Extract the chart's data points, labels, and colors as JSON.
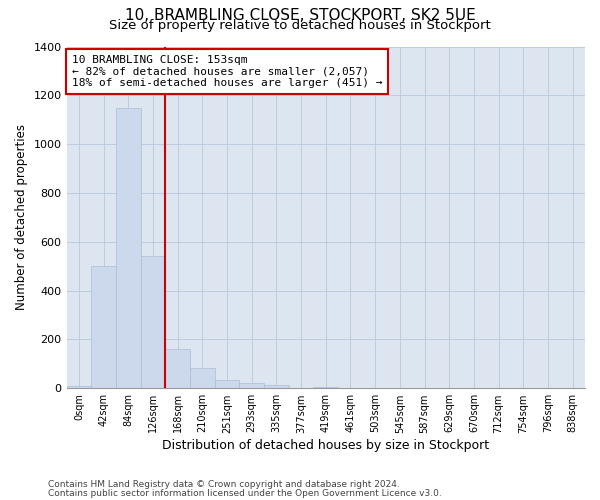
{
  "title": "10, BRAMBLING CLOSE, STOCKPORT, SK2 5UE",
  "subtitle": "Size of property relative to detached houses in Stockport",
  "xlabel": "Distribution of detached houses by size in Stockport",
  "ylabel": "Number of detached properties",
  "footnote1": "Contains HM Land Registry data © Crown copyright and database right 2024.",
  "footnote2": "Contains public sector information licensed under the Open Government Licence v3.0.",
  "bar_color": "#ccd9ec",
  "bar_edge_color": "#aabdd8",
  "grid_color": "#b8c8dc",
  "background_color": "#dde6f0",
  "annotation_box_color": "#cc0000",
  "property_line_color": "#cc0000",
  "categories": [
    "0sqm",
    "42sqm",
    "84sqm",
    "126sqm",
    "168sqm",
    "210sqm",
    "251sqm",
    "293sqm",
    "335sqm",
    "377sqm",
    "419sqm",
    "461sqm",
    "503sqm",
    "545sqm",
    "587sqm",
    "629sqm",
    "670sqm",
    "712sqm",
    "754sqm",
    "796sqm",
    "838sqm"
  ],
  "values": [
    10,
    500,
    1150,
    540,
    160,
    85,
    35,
    20,
    15,
    0,
    5,
    2,
    0,
    0,
    0,
    0,
    0,
    0,
    0,
    0,
    0
  ],
  "ylim": [
    0,
    1400
  ],
  "yticks": [
    0,
    200,
    400,
    600,
    800,
    1000,
    1200,
    1400
  ],
  "property_label": "10 BRAMBLING CLOSE: 153sqm",
  "annotation_line1": "← 82% of detached houses are smaller (2,057)",
  "annotation_line2": "18% of semi-detached houses are larger (451) →",
  "property_line_x": 3.5
}
